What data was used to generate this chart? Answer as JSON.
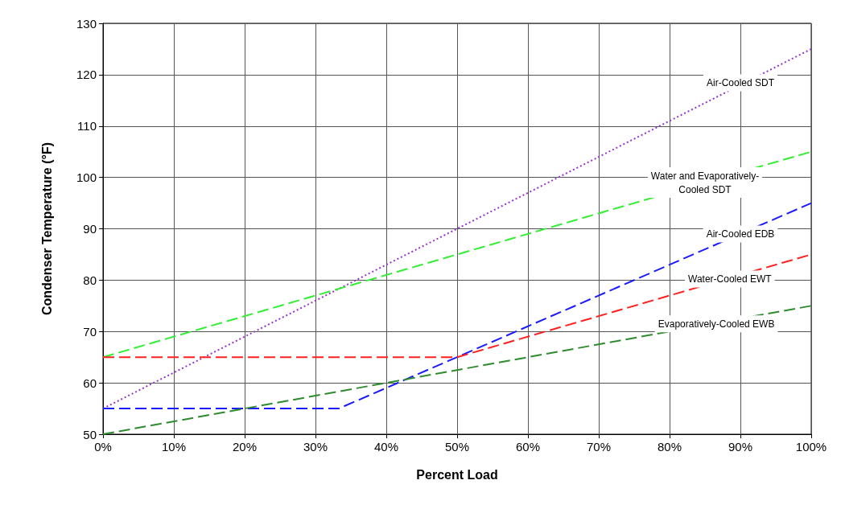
{
  "chart_data": {
    "type": "line",
    "xlabel": "Percent Load",
    "ylabel": "Condenser Temperature (°F)",
    "xlim": [
      0,
      100
    ],
    "xticks": [
      {
        "value": 0,
        "label": "0%"
      },
      {
        "value": 10,
        "label": "10%"
      },
      {
        "value": 20,
        "label": "20%"
      },
      {
        "value": 30,
        "label": "30%"
      },
      {
        "value": 40,
        "label": "40%"
      },
      {
        "value": 50,
        "label": "50%"
      },
      {
        "value": 60,
        "label": "60%"
      },
      {
        "value": 70,
        "label": "70%"
      },
      {
        "value": 80,
        "label": "80%"
      },
      {
        "value": 90,
        "label": "90%"
      },
      {
        "value": 100,
        "label": "100%"
      }
    ],
    "ylim": [
      50,
      130
    ],
    "yticks": [
      50,
      60,
      70,
      80,
      90,
      100,
      110,
      120,
      130
    ],
    "grid": true,
    "marker": "none",
    "series": [
      {
        "color": "#9933cc",
        "line_style": "dotted",
        "x": [
          0,
          100
        ],
        "values": [
          55,
          125
        ]
      },
      {
        "color": "#33ee33",
        "line_style": "dashed",
        "x": [
          0,
          100
        ],
        "values": [
          65,
          105
        ]
      },
      {
        "color": "#1a1aff",
        "line_style": "dashed",
        "x": [
          0,
          33.3,
          100
        ],
        "values": [
          55,
          55,
          95
        ]
      },
      {
        "color": "#ff2020",
        "line_style": "dashed",
        "x": [
          0,
          50,
          100
        ],
        "values": [
          65,
          65,
          85
        ]
      },
      {
        "color": "#2e8b2e",
        "line_style": "dashed",
        "x": [
          0,
          100
        ],
        "values": [
          50,
          75
        ]
      }
    ],
    "annotations": [
      {
        "text": "Air-Cooled SDT",
        "x": 90,
        "y": 118.4
      },
      {
        "text": "Water and Evaporatively-\nCooled SDT",
        "x": 85,
        "y": 99
      },
      {
        "text": "Air-Cooled EDB",
        "x": 90,
        "y": 89
      },
      {
        "text": "Water-Cooled EWT",
        "x": 88.5,
        "y": 80.2
      },
      {
        "text": "Evaporatively-Cooled EWB",
        "x": 86.6,
        "y": 71.5
      }
    ]
  }
}
